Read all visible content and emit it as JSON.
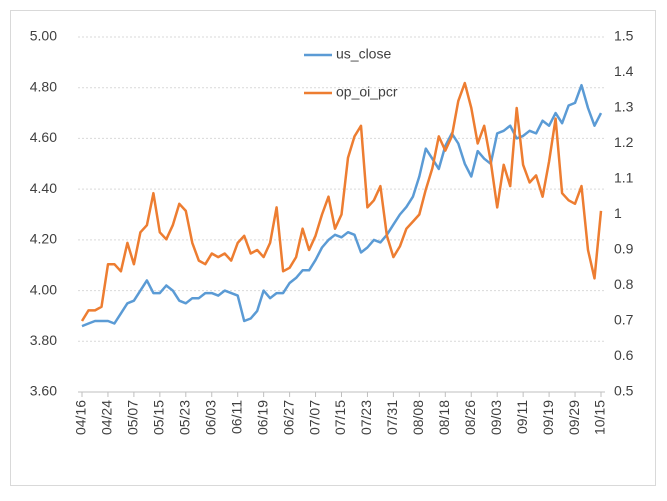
{
  "chart_data": {
    "type": "line",
    "categories": [
      "04/16",
      null,
      null,
      null,
      "04/24",
      null,
      null,
      null,
      "05/07",
      null,
      null,
      null,
      "05/15",
      null,
      null,
      null,
      "05/23",
      null,
      null,
      null,
      "06/03",
      null,
      null,
      null,
      "06/11",
      null,
      null,
      null,
      "06/19",
      null,
      null,
      null,
      "06/27",
      null,
      null,
      null,
      "07/07",
      null,
      null,
      null,
      "07/15",
      null,
      null,
      null,
      "07/23",
      null,
      null,
      null,
      "07/31",
      null,
      null,
      null,
      "08/08",
      null,
      null,
      null,
      "08/18",
      null,
      null,
      null,
      "08/26",
      null,
      null,
      null,
      "09/03",
      null,
      null,
      null,
      "09/11",
      null,
      null,
      null,
      "09/19",
      null,
      null,
      null,
      "09/29",
      null,
      null,
      null,
      "10/15"
    ],
    "series": [
      {
        "name": "us_close",
        "color": "#5b9bd5",
        "values": [
          3.86,
          3.87,
          3.88,
          3.88,
          3.88,
          3.87,
          3.91,
          3.95,
          3.96,
          4.0,
          4.04,
          3.99,
          3.99,
          4.02,
          4.0,
          3.96,
          3.95,
          3.97,
          3.97,
          3.99,
          3.99,
          3.98,
          4.0,
          3.99,
          3.98,
          3.88,
          3.89,
          3.92,
          4.0,
          3.97,
          3.99,
          3.99,
          4.03,
          4.05,
          4.08,
          4.08,
          4.12,
          4.17,
          4.2,
          4.22,
          4.21,
          4.23,
          4.22,
          4.15,
          4.17,
          4.2,
          4.19,
          4.22,
          4.26,
          4.3,
          4.33,
          4.37,
          4.45,
          4.56,
          4.52,
          4.48,
          4.57,
          4.62,
          4.58,
          4.5,
          4.45,
          4.55,
          4.52,
          4.5,
          4.62,
          4.63,
          4.65,
          4.6,
          4.61,
          4.63,
          4.62,
          4.67,
          4.65,
          4.7,
          4.66,
          4.73,
          4.74,
          4.81,
          4.72,
          4.65,
          4.7
        ]
      },
      {
        "name": "op_oi_pcr",
        "color": "#ed7d31",
        "axis": "y2",
        "values": [
          0.7,
          0.73,
          0.73,
          0.74,
          0.86,
          0.86,
          0.84,
          0.92,
          0.86,
          0.95,
          0.97,
          1.06,
          0.95,
          0.93,
          0.97,
          1.03,
          1.01,
          0.92,
          0.87,
          0.86,
          0.89,
          0.88,
          0.89,
          0.87,
          0.92,
          0.94,
          0.89,
          0.9,
          0.88,
          0.92,
          1.02,
          0.84,
          0.85,
          0.88,
          0.96,
          0.9,
          0.94,
          1.0,
          1.05,
          0.96,
          1.0,
          1.16,
          1.22,
          1.25,
          1.02,
          1.04,
          1.08,
          0.94,
          0.88,
          0.91,
          0.96,
          0.98,
          1.0,
          1.07,
          1.13,
          1.22,
          1.18,
          1.22,
          1.32,
          1.37,
          1.3,
          1.2,
          1.25,
          1.15,
          1.02,
          1.14,
          1.08,
          1.3,
          1.14,
          1.09,
          1.11,
          1.05,
          1.15,
          1.27,
          1.06,
          1.04,
          1.03,
          1.08,
          0.9,
          0.82,
          1.01
        ]
      }
    ],
    "ylim": [
      3.6,
      5.0
    ],
    "yticks": [
      {
        "value": 3.6,
        "label": "3.60"
      },
      {
        "value": 3.8,
        "label": "3.80"
      },
      {
        "value": 4.0,
        "label": "4.00"
      },
      {
        "value": 4.2,
        "label": "4.20"
      },
      {
        "value": 4.4,
        "label": "4.40"
      },
      {
        "value": 4.6,
        "label": "4.60"
      },
      {
        "value": 4.8,
        "label": "4.80"
      },
      {
        "value": 5.0,
        "label": "5.00"
      }
    ],
    "y2lim": [
      0.5,
      1.5
    ],
    "y2ticks": [
      0.5,
      0.6,
      0.7,
      0.8,
      0.9,
      1,
      1.1,
      1.2,
      1.3,
      1.4,
      1.5
    ],
    "grid": true,
    "legend": "top"
  }
}
